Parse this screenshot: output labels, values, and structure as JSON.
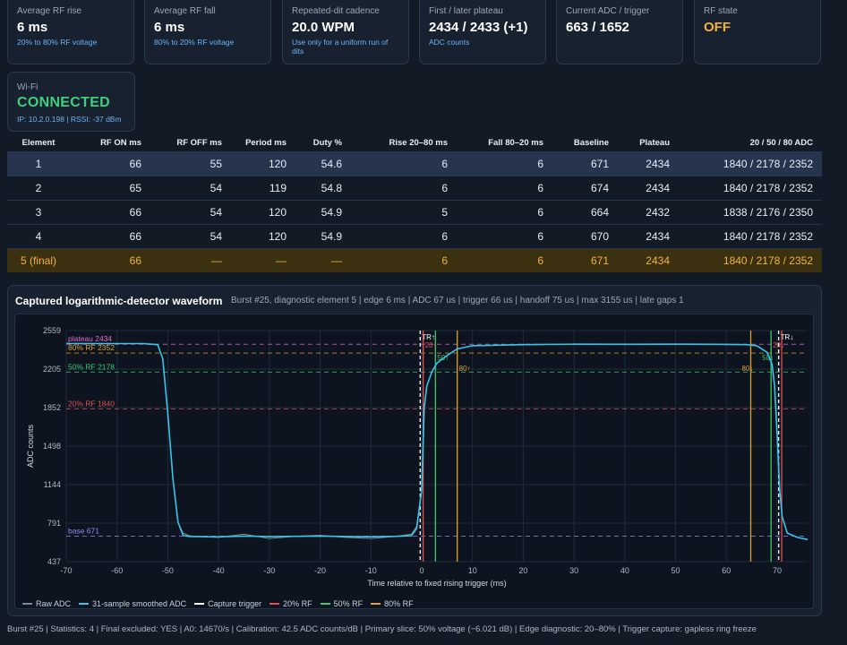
{
  "cards": [
    {
      "label": "Average RF rise",
      "value": "6 ms",
      "sub": "20% to 80% RF voltage"
    },
    {
      "label": "Average RF fall",
      "value": "6 ms",
      "sub": "80% to 20% RF voltage"
    },
    {
      "label": "Repeated-dit cadence",
      "value": "20.0 WPM",
      "sub": "Use only for a uniform run of dits"
    },
    {
      "label": "First / later plateau",
      "value": "2434 / 2433 (+1)",
      "sub": "ADC counts"
    },
    {
      "label": "Current ADC / trigger",
      "value": "663 / 1652",
      "sub": ""
    },
    {
      "label": "RF state",
      "value": "OFF",
      "sub": ""
    }
  ],
  "wifi": {
    "label": "Wi-Fi",
    "value": "CONNECTED",
    "sub": "IP: 10.2.0.198 | RSSI: -37 dBm"
  },
  "table": {
    "headers": [
      "Element",
      "RF ON ms",
      "RF OFF ms",
      "Period ms",
      "Duty %",
      "Rise 20–80 ms",
      "Fall 80–20 ms",
      "Baseline",
      "Plateau",
      "20 / 50 / 80 ADC"
    ],
    "rows": [
      [
        "1",
        "66",
        "55",
        "120",
        "54.6",
        "6",
        "6",
        "671",
        "2434",
        "1840 / 2178 / 2352"
      ],
      [
        "2",
        "65",
        "54",
        "119",
        "54.8",
        "6",
        "6",
        "674",
        "2434",
        "1840 / 2178 / 2352"
      ],
      [
        "3",
        "66",
        "54",
        "120",
        "54.9",
        "5",
        "6",
        "664",
        "2432",
        "1838 / 2176 / 2350"
      ],
      [
        "4",
        "66",
        "54",
        "120",
        "54.9",
        "6",
        "6",
        "670",
        "2434",
        "1840 / 2178 / 2352"
      ],
      [
        "5 (final)",
        "66",
        "—",
        "—",
        "—",
        "6",
        "6",
        "671",
        "2434",
        "1840 / 2178 / 2352"
      ]
    ]
  },
  "panel": {
    "title": "Captured logarithmic-detector waveform",
    "meta": "Burst #25, diagnostic element 5 | edge 6 ms | ADC 67 us | trigger 66 us | handoff 75 us | max 3155 us | late gaps 1"
  },
  "chart_data": {
    "type": "line",
    "xlabel": "Time relative to fixed rising trigger (ms)",
    "ylabel": "ADC counts",
    "xlim": [
      -70,
      76
    ],
    "ylim": [
      437,
      2559
    ],
    "xticks": [
      -70,
      -60,
      -50,
      -40,
      -30,
      -20,
      -10,
      0,
      10,
      20,
      30,
      40,
      50,
      60,
      70
    ],
    "yticks": [
      437,
      791,
      1144,
      1498,
      1852,
      2205,
      2559
    ],
    "grid": true,
    "legend_position": "bottom",
    "levels": [
      {
        "label": "plateau 2434",
        "value": 2434,
        "color": "#e66ad0"
      },
      {
        "label": "80% RF 2352",
        "value": 2352,
        "color": "#e0a030"
      },
      {
        "label": "50% RF 2178",
        "value": 2178,
        "color": "#3ec86e"
      },
      {
        "label": "20% RF 1840",
        "value": 1840,
        "color": "#e05050"
      },
      {
        "label": "base 671",
        "value": 671,
        "color": "#9b86f0"
      }
    ],
    "markers": [
      {
        "x": -0.3,
        "color": "#ffffff",
        "label": "TR↑"
      },
      {
        "x": 0.3,
        "color": "#e05050",
        "label": "20↑"
      },
      {
        "x": 2.7,
        "color": "#3ec86e",
        "label": "50↑"
      },
      {
        "x": 7.0,
        "color": "#e0a030",
        "label": "80↑"
      },
      {
        "x": 64.8,
        "color": "#e0a030",
        "label": "80↓"
      },
      {
        "x": 68.8,
        "color": "#3ec86e",
        "label": "50↓"
      },
      {
        "x": 70.3,
        "color": "#ffffff",
        "label": "TR↓"
      },
      {
        "x": 70.9,
        "color": "#e05050",
        "label": "20↓"
      }
    ],
    "series": [
      {
        "name": "Raw ADC",
        "color": "#7c8796",
        "x": [
          -70,
          -60,
          -55,
          -52,
          -51,
          -50,
          -49,
          -48,
          -47,
          -46,
          -45,
          -40,
          -35,
          -30,
          -25,
          -20,
          -15,
          -10,
          -5,
          -2,
          -1,
          0,
          0.5,
          1,
          2,
          3,
          5,
          7,
          10,
          20,
          30,
          40,
          50,
          60,
          64,
          66,
          68,
          69,
          69.5,
          70,
          70.5,
          71,
          72,
          74,
          76
        ],
        "y": [
          2440,
          2440,
          2440,
          2430,
          2300,
          1800,
          1200,
          800,
          700,
          680,
          670,
          660,
          690,
          650,
          670,
          680,
          660,
          650,
          670,
          690,
          760,
          1100,
          1850,
          2050,
          2180,
          2260,
          2330,
          2390,
          2420,
          2430,
          2434,
          2433,
          2434,
          2432,
          2430,
          2420,
          2360,
          2250,
          2050,
          1600,
          1100,
          850,
          700,
          660,
          640
        ]
      },
      {
        "name": "31-sample smoothed ADC",
        "color": "#38c4e8",
        "x": [
          -70,
          -60,
          -55,
          -52,
          -51,
          -50,
          -49,
          -48,
          -47,
          -46,
          -45,
          -40,
          -35,
          -30,
          -25,
          -20,
          -15,
          -10,
          -5,
          -2,
          -1,
          0,
          0.5,
          1,
          2,
          3,
          5,
          7,
          10,
          20,
          30,
          40,
          50,
          60,
          64,
          66,
          68,
          69,
          69.5,
          70,
          70.5,
          71,
          72,
          74,
          76
        ],
        "y": [
          2440,
          2440,
          2440,
          2430,
          2300,
          1800,
          1200,
          800,
          680,
          670,
          668,
          665,
          672,
          668,
          670,
          672,
          668,
          666,
          670,
          676,
          740,
          1100,
          1850,
          2050,
          2180,
          2260,
          2330,
          2390,
          2420,
          2430,
          2434,
          2433,
          2434,
          2432,
          2430,
          2420,
          2360,
          2250,
          2050,
          1600,
          1100,
          850,
          700,
          660,
          640
        ]
      }
    ],
    "legend": [
      {
        "label": "Raw ADC",
        "color": "#7c8796"
      },
      {
        "label": "31-sample smoothed ADC",
        "color": "#38c4e8"
      },
      {
        "label": "Capture trigger",
        "color": "#ffffff"
      },
      {
        "label": "20% RF",
        "color": "#e05050"
      },
      {
        "label": "50% RF",
        "color": "#3ec86e"
      },
      {
        "label": "80% RF",
        "color": "#e0a030"
      }
    ]
  },
  "footer": "Burst #25 | Statistics: 4 | Final excluded: YES | A0: 14670/s | Calibration: 42.5 ADC counts/dB | Primary slice: 50% voltage (−6.021 dB) | Edge diagnostic: 20–80% | Trigger capture: gapless ring freeze"
}
